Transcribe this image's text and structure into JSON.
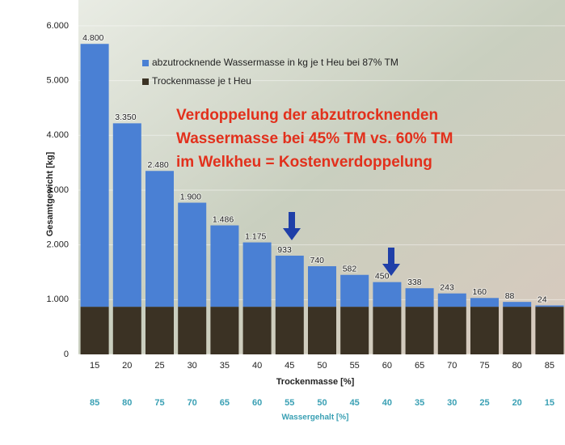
{
  "chart_data": {
    "type": "stacked_bar",
    "categories": [
      "15",
      "20",
      "25",
      "30",
      "35",
      "40",
      "45",
      "50",
      "55",
      "60",
      "65",
      "70",
      "75",
      "80",
      "85"
    ],
    "secondary_categories": [
      "85",
      "80",
      "75",
      "70",
      "65",
      "60",
      "55",
      "50",
      "45",
      "40",
      "35",
      "30",
      "25",
      "20",
      "15"
    ],
    "xlabel": "Trockenmasse [%]",
    "secondary_xlabel": "Wassergehalt [%]",
    "ylabel": "Gesamtgewicht [kg]",
    "ylim": [
      0,
      6250
    ],
    "yticks": [
      0,
      {
        "value": 1000,
        "label": "1.000"
      },
      {
        "value": 2000,
        "label": "2.000"
      },
      {
        "value": 3000,
        "label": "3.000"
      },
      {
        "value": 4000,
        "label": "4.000"
      },
      {
        "value": 5000,
        "label": "5.000"
      },
      {
        "value": 6000,
        "label": "6.000"
      }
    ],
    "series": [
      {
        "name": "Trockenmasse je t Heu",
        "color": "#3b3224",
        "values": [
          870,
          870,
          870,
          870,
          870,
          870,
          870,
          870,
          870,
          870,
          870,
          870,
          870,
          870,
          870
        ]
      },
      {
        "name": "abzutrocknende Wassermasse in kg je t Heu bei 87% TM",
        "color": "#4a80d4",
        "values": [
          4800,
          3350,
          2480,
          1900,
          1486,
          1175,
          933,
          740,
          582,
          450,
          338,
          243,
          160,
          88,
          24
        ],
        "value_labels": [
          "4.800",
          "3.350",
          "2.480",
          "1.900",
          "1.486",
          "1.175",
          "933",
          "740",
          "582",
          "450",
          "338",
          "243",
          "160",
          "88",
          "24"
        ]
      }
    ],
    "annotation": [
      "Verdoppelung der abzutrocknenden",
      "Wassermasse bei 45% TM vs. 60% TM",
      "im Welkheu = Kostenverdoppelung"
    ]
  }
}
